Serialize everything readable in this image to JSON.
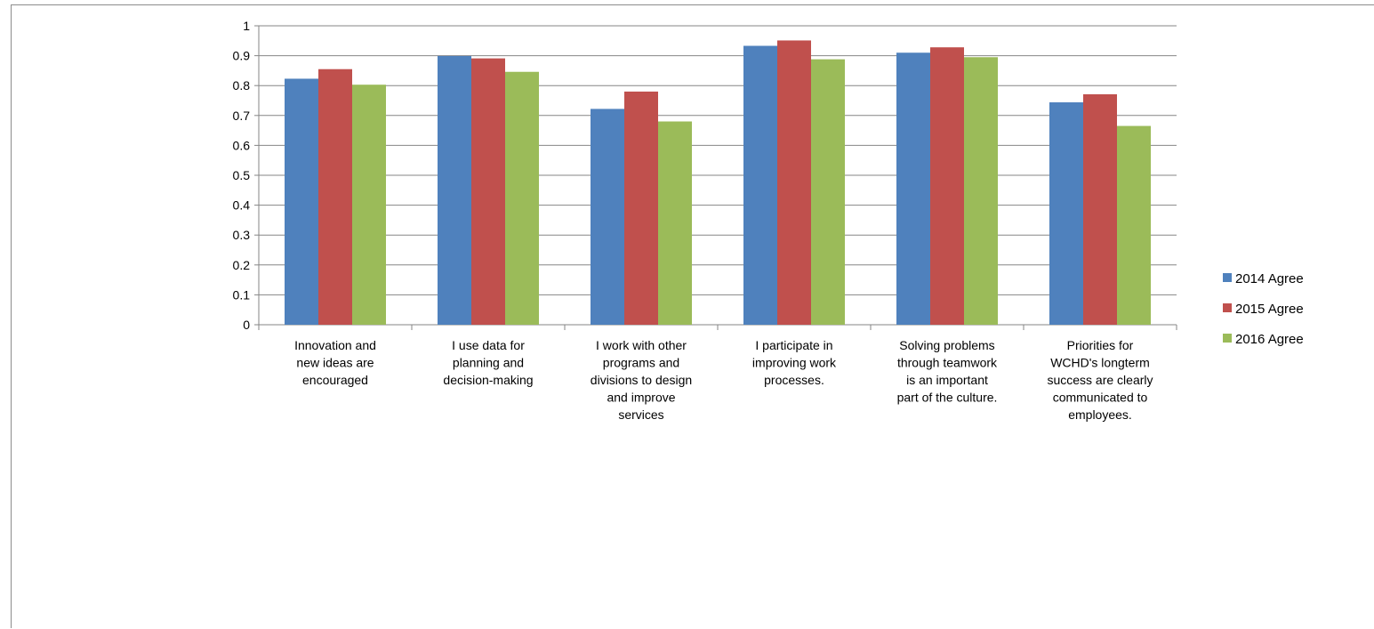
{
  "chart_data": {
    "type": "bar",
    "categories": [
      [
        "Innovation and",
        "new ideas are",
        "encouraged"
      ],
      [
        "I use data for",
        "planning and",
        "decision-making"
      ],
      [
        "I work with other",
        "programs and",
        "divisions to design",
        "and improve",
        "services"
      ],
      [
        "I participate in",
        "improving work",
        "processes."
      ],
      [
        "Solving problems",
        "through teamwork",
        "is an important",
        "part of the culture."
      ],
      [
        "Priorities for",
        "WCHD's longterm",
        "success are clearly",
        "communicated to",
        "employees."
      ]
    ],
    "series": [
      {
        "name": "2014 Agree",
        "color": "#4f81bd",
        "values": [
          0.823,
          0.899,
          0.722,
          0.933,
          0.91,
          0.744
        ]
      },
      {
        "name": "2015 Agree",
        "color": "#c0504d",
        "values": [
          0.855,
          0.891,
          0.78,
          0.951,
          0.928,
          0.771
        ]
      },
      {
        "name": "2016 Agree",
        "color": "#9bbb59",
        "values": [
          0.803,
          0.846,
          0.68,
          0.888,
          0.895,
          0.665
        ]
      }
    ],
    "yticks": [
      "0",
      "0.1",
      "0.2",
      "0.3",
      "0.4",
      "0.5",
      "0.6",
      "0.7",
      "0.8",
      "0.9",
      "1"
    ],
    "ylim": [
      0,
      1
    ],
    "grid": true,
    "legend": "right",
    "title": "",
    "xlabel": "",
    "ylabel": ""
  }
}
